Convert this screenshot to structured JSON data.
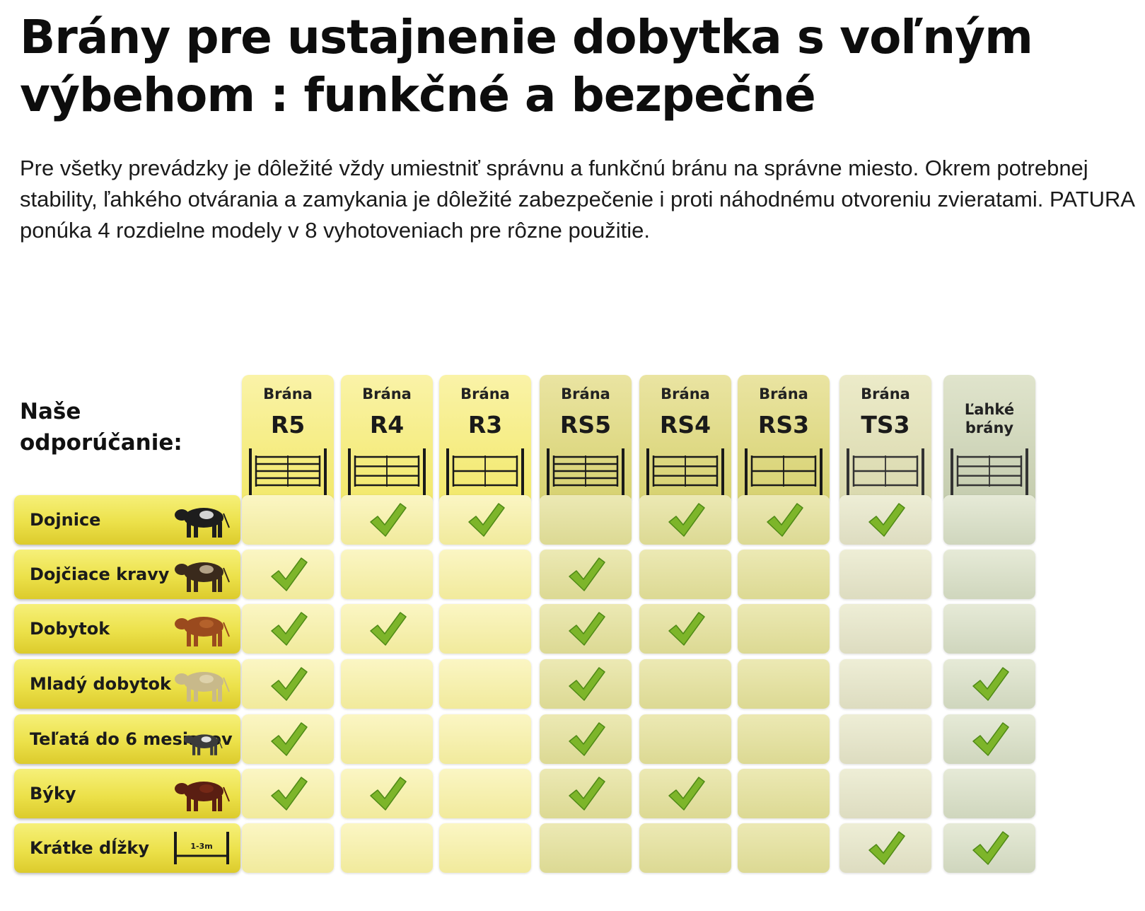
{
  "title": "Brány pre ustajnenie dobytka s voľným výbehom : funkčné a bezpečné",
  "intro": "Pre všetky prevádzky je dôležité vždy umiestniť správnu a funkčnú bránu na správne miesto. Okrem potrebnej stability, ľahkého otvárania a zamykania je dôležité zabezpečenie i proti náhodnému otvoreniu zvieratami. PATURA ponúka 4 rozdielne modely v 8 vyhotoveniach pre rôzne použitie.",
  "recommendation_label": "Naše odporúčanie:",
  "columns": [
    {
      "word": "Brána",
      "model": "R5",
      "group": "r",
      "gate_icon": "gate-5-rail-icon"
    },
    {
      "word": "Brána",
      "model": "R4",
      "group": "r",
      "gate_icon": "gate-4-rail-icon"
    },
    {
      "word": "Brána",
      "model": "R3",
      "group": "r",
      "gate_icon": "gate-3-rail-icon"
    },
    {
      "word": "Brána",
      "model": "RS5",
      "group": "rs",
      "gate_icon": "gate-5-rail-icon"
    },
    {
      "word": "Brána",
      "model": "RS4",
      "group": "rs",
      "gate_icon": "gate-4-rail-icon"
    },
    {
      "word": "Brána",
      "model": "RS3",
      "group": "rs",
      "gate_icon": "gate-3-rail-icon"
    },
    {
      "word": "Brána",
      "model": "TS3",
      "group": "ts",
      "gate_icon": "gate-3-rail-icon"
    },
    {
      "word": "",
      "model": "Ľahké brány",
      "group": "l",
      "gate_icon": "gate-light-icon"
    }
  ],
  "rows": [
    {
      "label": "Dojnice",
      "icon": "dairy-cow-icon",
      "checks": [
        false,
        true,
        true,
        false,
        true,
        true,
        true,
        false
      ]
    },
    {
      "label": "Dojčiace kravy",
      "icon": "suckler-cow-icon",
      "checks": [
        true,
        false,
        false,
        true,
        false,
        false,
        false,
        false
      ]
    },
    {
      "label": "Dobytok",
      "icon": "cattle-icon",
      "checks": [
        true,
        true,
        false,
        true,
        true,
        false,
        false,
        false
      ]
    },
    {
      "label": "Mladý dobytok",
      "icon": "young-cattle-icon",
      "checks": [
        true,
        false,
        false,
        true,
        false,
        false,
        false,
        true
      ]
    },
    {
      "label": "Teľatá do 6 mesiacov",
      "icon": "calf-icon",
      "checks": [
        true,
        false,
        false,
        true,
        false,
        false,
        false,
        true
      ]
    },
    {
      "label": "Býky",
      "icon": "bull-icon",
      "checks": [
        true,
        true,
        false,
        true,
        true,
        false,
        false,
        false
      ]
    },
    {
      "label": "Krátke dĺžky",
      "icon": "short-length-icon",
      "icon_text": "1-3m",
      "checks": [
        false,
        false,
        false,
        false,
        false,
        false,
        true,
        true
      ]
    }
  ],
  "colors": {
    "check": "#7db52a",
    "check_dark": "#4f8a16",
    "row_label": "#ece14a",
    "r_group": "#f1ea9c",
    "rs_group": "#dcd993",
    "ts_group": "#dddcc0",
    "light_group": "#cfd6bd"
  }
}
